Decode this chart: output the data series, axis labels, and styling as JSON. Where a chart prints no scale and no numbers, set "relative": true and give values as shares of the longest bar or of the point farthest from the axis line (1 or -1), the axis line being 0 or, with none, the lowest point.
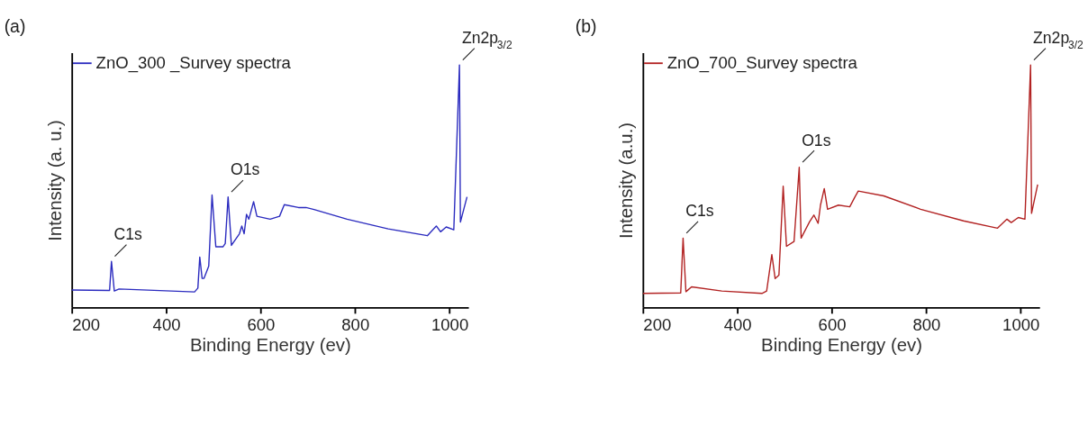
{
  "chart_data": [
    {
      "type": "line",
      "title": "(a)",
      "xlabel": "Binding Energy (ev)",
      "ylabel": "Intensity (a. u.)",
      "relative": true,
      "xlim": [
        200,
        1040
      ],
      "xticks": [
        200,
        400,
        600,
        800,
        1000
      ],
      "legend": "top left",
      "grid": false,
      "annotations": [
        {
          "text": "C1s",
          "x": 284,
          "y": 0.19
        },
        {
          "text": "O1s",
          "x": 531,
          "y": 0.456
        },
        {
          "text": "Zn2p$_{3/2}$",
          "x": 1021,
          "y": 1
        }
      ],
      "series": [
        {
          "name": "ZnO_300 _Survey spectra",
          "color": "#2b2bbf",
          "x": [
            200,
            280,
            284,
            290,
            300,
            460,
            467,
            471,
            476,
            480,
            490,
            497,
            505,
            520,
            525,
            531,
            538,
            555,
            560,
            565,
            570,
            575,
            585,
            592,
            620,
            640,
            650,
            680,
            696,
            713,
            783,
            870,
            953,
            972,
            981,
            993,
            1009,
            1021,
            1023,
            1037
          ],
          "values": [
            0.072,
            0.07,
            0.19,
            0.068,
            0.076,
            0.064,
            0.08,
            0.208,
            0.12,
            0.12,
            0.17,
            0.464,
            0.25,
            0.25,
            0.264,
            0.456,
            0.256,
            0.304,
            0.336,
            0.304,
            0.384,
            0.364,
            0.436,
            0.376,
            0.364,
            0.376,
            0.424,
            0.412,
            0.412,
            0.404,
            0.364,
            0.324,
            0.296,
            0.336,
            0.312,
            0.332,
            0.32,
            1,
            0.352,
            0.456
          ]
        }
      ]
    },
    {
      "type": "line",
      "title": "(b)",
      "xlabel": "Binding Energy (ev)",
      "ylabel": "Intensity (a.u.)",
      "relative": true,
      "xlim": [
        200,
        1040
      ],
      "xticks": [
        200,
        400,
        600,
        800,
        1000
      ],
      "legend": "top left",
      "grid": false,
      "annotations": [
        {
          "text": "C1s",
          "x": 285,
          "y": 0.286
        },
        {
          "text": "O1s",
          "x": 531,
          "y": 0.578
        },
        {
          "text": "Zn2p$_{3/2}$",
          "x": 1021,
          "y": 1
        }
      ],
      "series": [
        {
          "name": "ZnO_700_Survey spectra",
          "color": "#b22222",
          "x": [
            200,
            280,
            285,
            291,
            303,
            367,
            452,
            462,
            473,
            480,
            488,
            497,
            504,
            520,
            531,
            535,
            553,
            562,
            571,
            576,
            584,
            591,
            614,
            638,
            649,
            656,
            710,
            788,
            879,
            951,
            971,
            980,
            995,
            1009,
            1021,
            1023,
            1036
          ],
          "values": [
            0.058,
            0.06,
            0.286,
            0.065,
            0.085,
            0.068,
            0.058,
            0.068,
            0.218,
            0.119,
            0.133,
            0.5,
            0.252,
            0.272,
            0.578,
            0.286,
            0.354,
            0.381,
            0.347,
            0.422,
            0.49,
            0.405,
            0.422,
            0.415,
            0.456,
            0.48,
            0.46,
            0.405,
            0.357,
            0.327,
            0.364,
            0.35,
            0.371,
            0.364,
            1,
            0.388,
            0.507
          ]
        }
      ]
    }
  ]
}
